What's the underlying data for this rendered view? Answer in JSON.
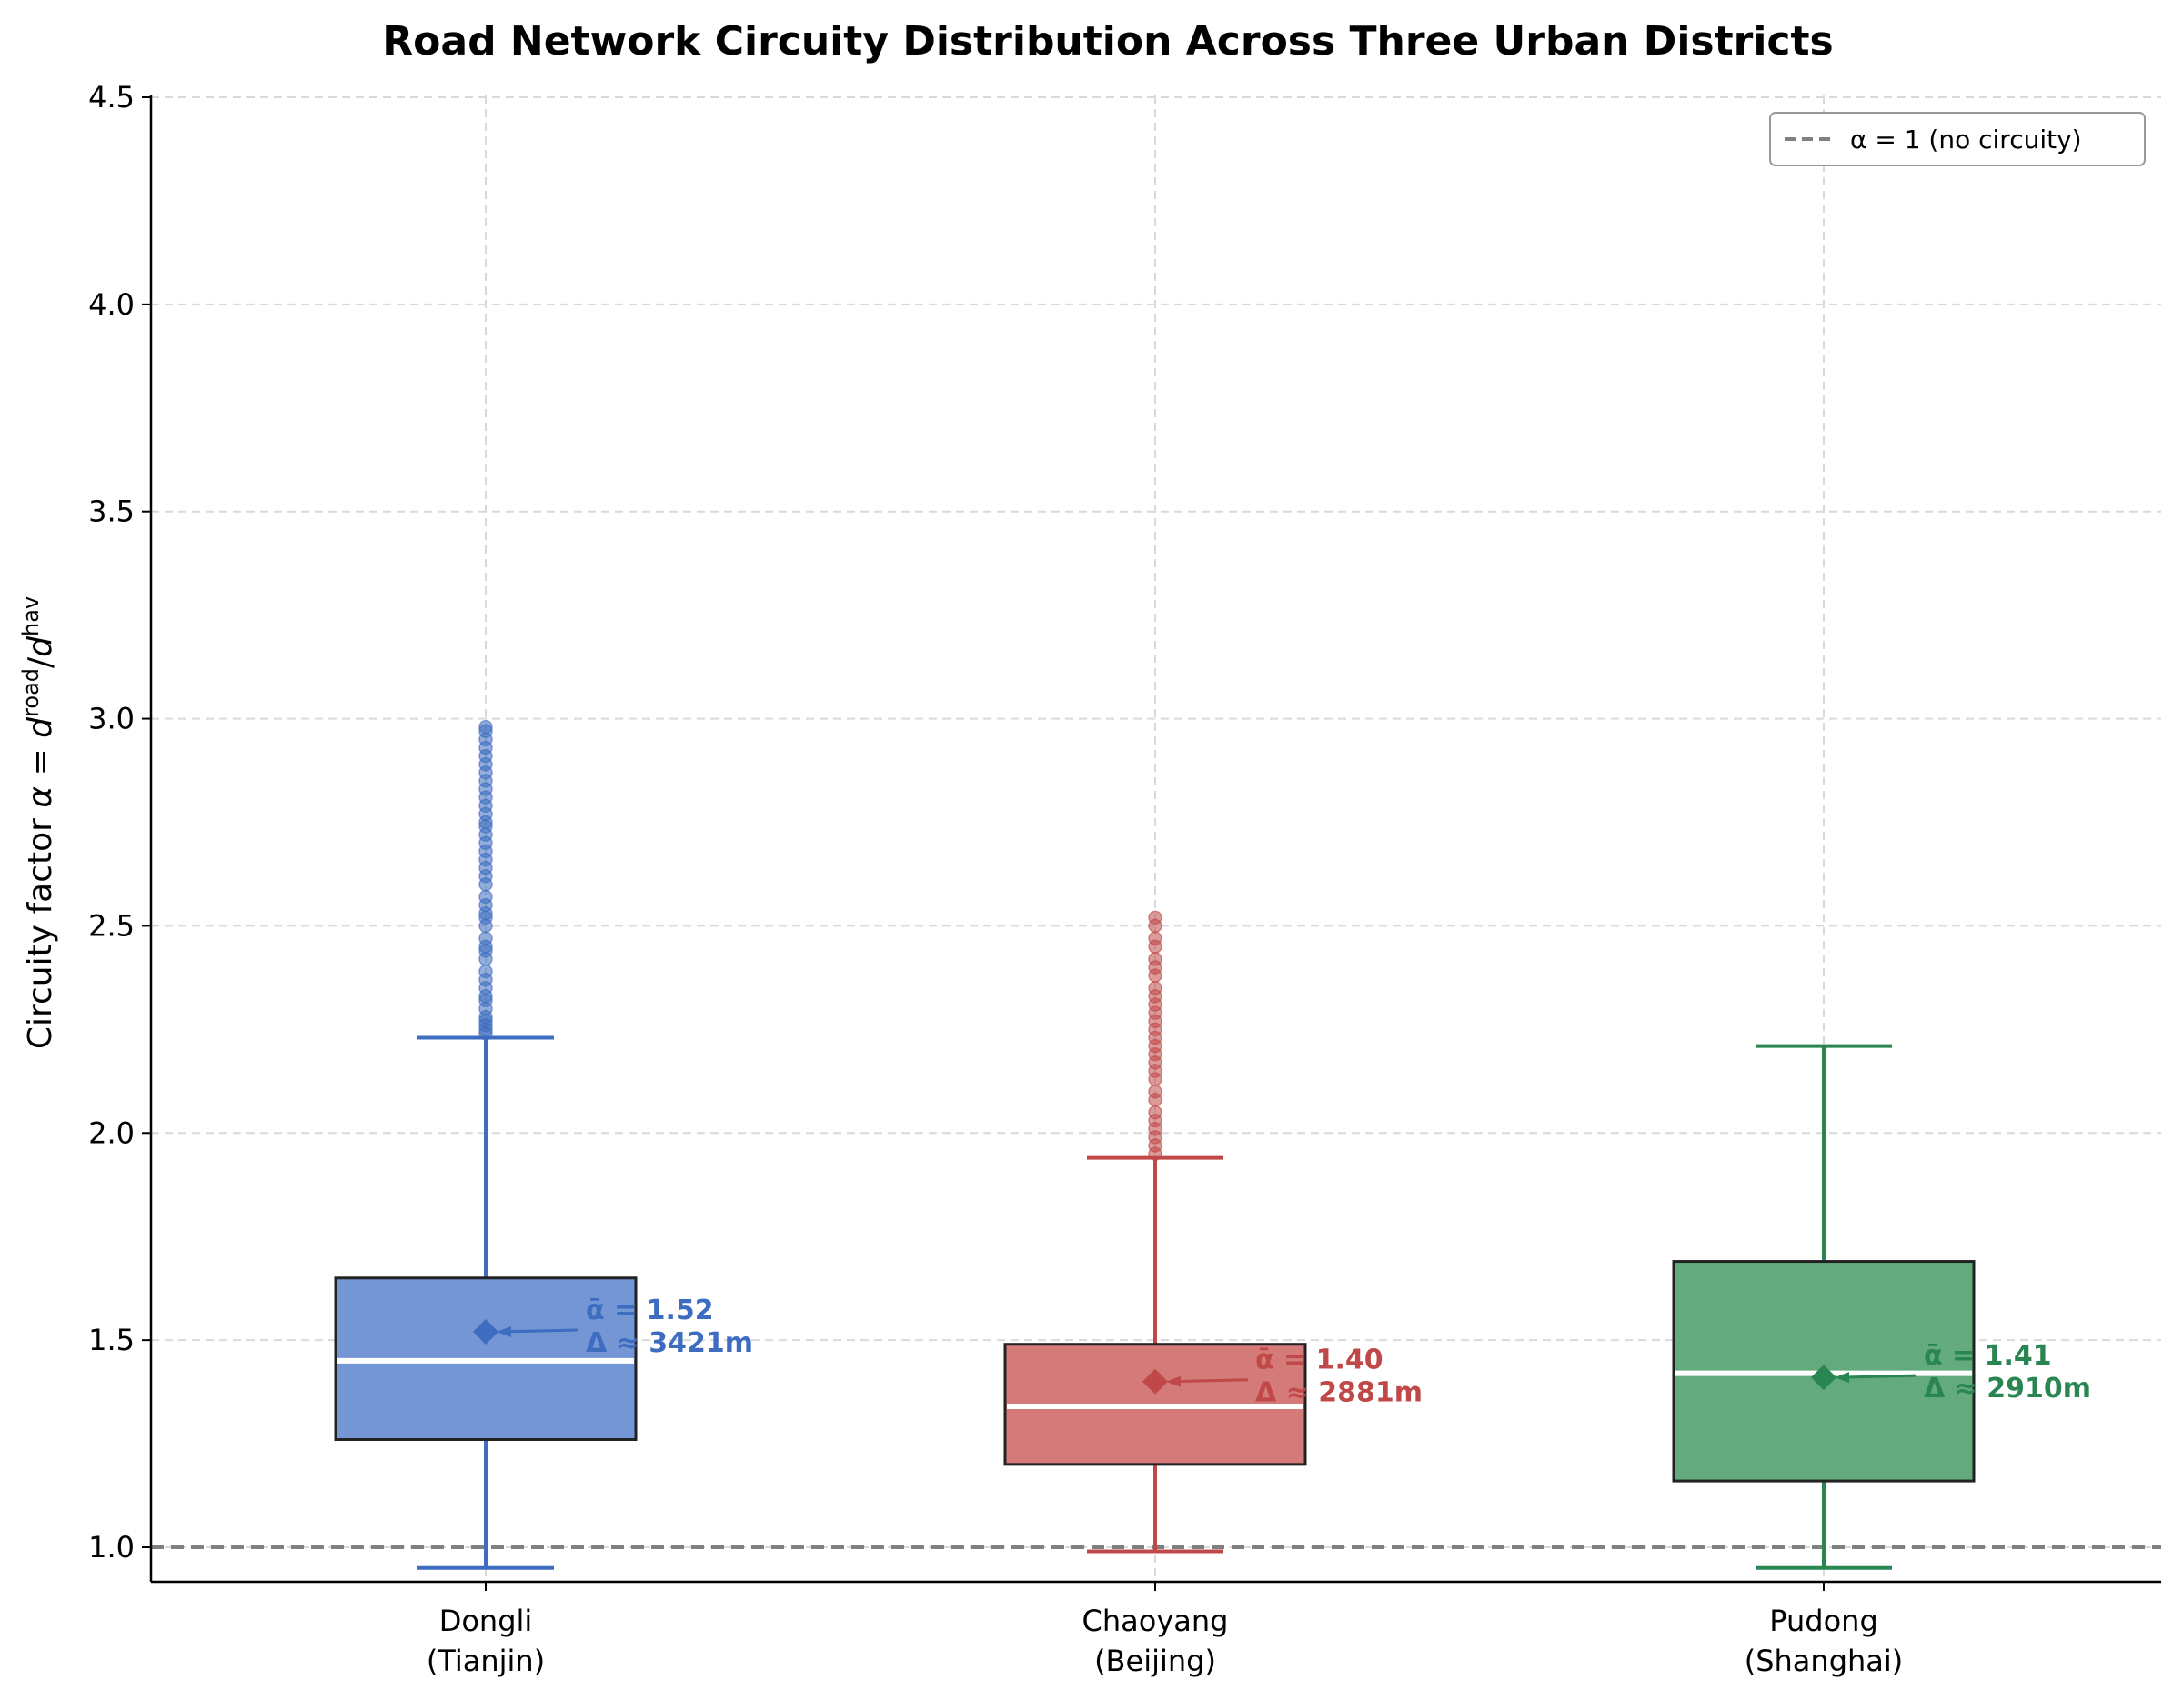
{
  "chart_data": {
    "type": "box",
    "title": "Road Network Circuity Distribution Across Three Urban Districts",
    "xlabel": "",
    "ylabel": "Circuity factor α = d^road / d^hav",
    "ylim": [
      0.92,
      4.5
    ],
    "yticks": [
      "1.0",
      "1.5",
      "2.0",
      "2.5",
      "3.0",
      "3.5",
      "4.0",
      "4.5"
    ],
    "grid": true,
    "reference_line": {
      "y": 1.0,
      "label": "α = 1 (no circuity)",
      "style": "dashed",
      "color": "#808080"
    },
    "legend": {
      "position": "top-right",
      "entries": [
        "α = 1 (no circuity)"
      ]
    },
    "categories": [
      {
        "name": "Dongli",
        "sub": "(Tianjin)",
        "color": "#3d6cc0",
        "fill": "#7496d4",
        "whisker_low": 0.95,
        "q1": 1.26,
        "median": 1.45,
        "q3": 1.65,
        "whisker_high": 2.23,
        "mean": 1.52,
        "mean_label": "ᾱ = 1.52",
        "delta_label": "Δ ≈ 3421m",
        "outliers": [
          2.24,
          2.25,
          2.26,
          2.27,
          2.28,
          2.3,
          2.32,
          2.33,
          2.35,
          2.37,
          2.39,
          2.42,
          2.44,
          2.45,
          2.47,
          2.5,
          2.52,
          2.53,
          2.55,
          2.57,
          2.6,
          2.62,
          2.64,
          2.66,
          2.68,
          2.7,
          2.72,
          2.74,
          2.75,
          2.77,
          2.79,
          2.81,
          2.83,
          2.85,
          2.87,
          2.89,
          2.91,
          2.93,
          2.95,
          2.97,
          2.98
        ]
      },
      {
        "name": "Chaoyang",
        "sub": "(Beijing)",
        "color": "#c04848",
        "fill": "#d47a78",
        "whisker_low": 0.99,
        "q1": 1.2,
        "median": 1.34,
        "q3": 1.49,
        "whisker_high": 1.94,
        "mean": 1.4,
        "mean_label": "ᾱ = 1.40",
        "delta_label": "Δ ≈ 2881m",
        "outliers": [
          1.95,
          1.97,
          1.99,
          2.01,
          2.03,
          2.05,
          2.08,
          2.1,
          2.13,
          2.15,
          2.17,
          2.19,
          2.21,
          2.23,
          2.25,
          2.27,
          2.29,
          2.31,
          2.33,
          2.35,
          2.38,
          2.4,
          2.42,
          2.45,
          2.47,
          2.5,
          2.52
        ]
      },
      {
        "name": "Pudong",
        "sub": "(Shanghai)",
        "color": "#2a8651",
        "fill": "#63aa7f",
        "whisker_low": 0.95,
        "q1": 1.16,
        "median": 1.42,
        "q3": 1.69,
        "whisker_high": 2.21,
        "mean": 1.41,
        "mean_label": "ᾱ = 1.41",
        "delta_label": "Δ ≈ 2910m",
        "outliers": []
      }
    ]
  }
}
